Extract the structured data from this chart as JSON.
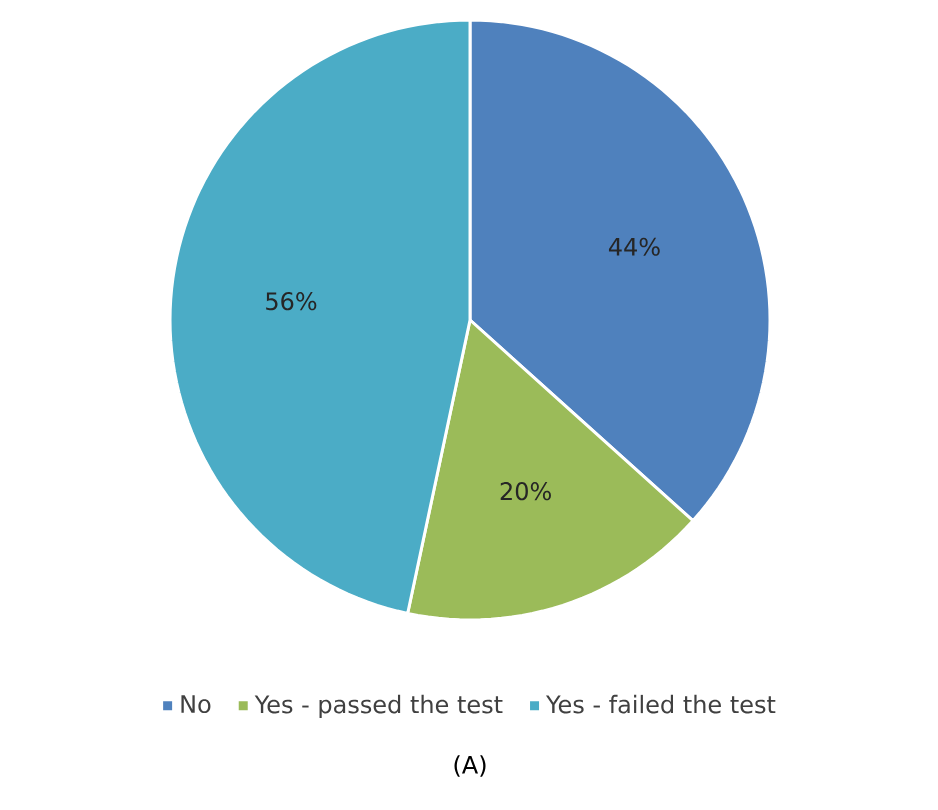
{
  "chart_data": {
    "type": "pie",
    "categories": [
      "No",
      "Yes - passed the test",
      "Yes - failed the test"
    ],
    "values": [
      44,
      20,
      56
    ],
    "value_labels": [
      "44%",
      "20%",
      "56%"
    ],
    "colors": [
      "#4f81bd",
      "#9bbb59",
      "#4bacc6"
    ],
    "legend": "bottom",
    "annotations": [
      "(A)"
    ]
  }
}
